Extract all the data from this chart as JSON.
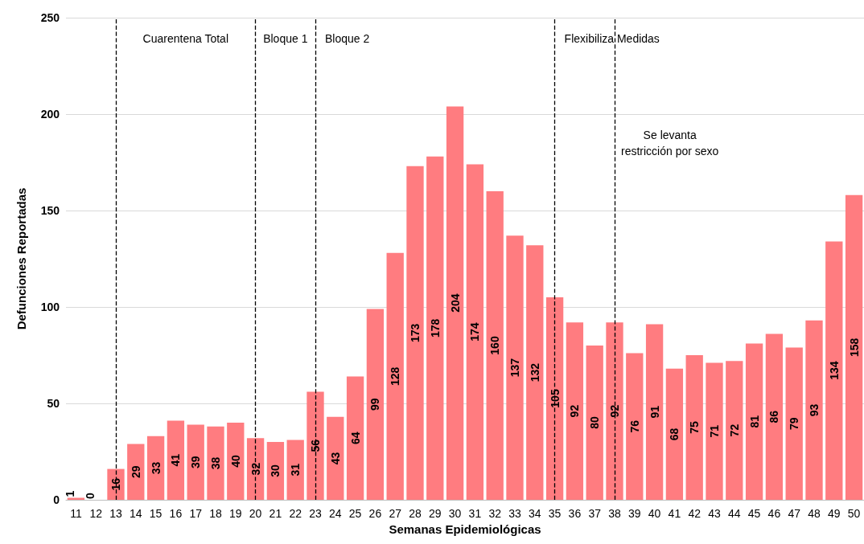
{
  "chart_data": {
    "type": "bar",
    "xlabel": "Semanas Epidemiológicas",
    "ylabel": "Defunciones Reportadas",
    "categories": [
      "11",
      "12",
      "13",
      "14",
      "15",
      "16",
      "17",
      "18",
      "19",
      "20",
      "21",
      "22",
      "23",
      "24",
      "25",
      "26",
      "27",
      "28",
      "29",
      "30",
      "31",
      "32",
      "33",
      "34",
      "35",
      "36",
      "37",
      "38",
      "39",
      "40",
      "41",
      "42",
      "43",
      "44",
      "45",
      "46",
      "47",
      "48",
      "49",
      "50"
    ],
    "values": [
      1,
      0,
      16,
      29,
      33,
      41,
      39,
      38,
      40,
      32,
      30,
      31,
      56,
      43,
      64,
      99,
      128,
      173,
      178,
      204,
      174,
      160,
      137,
      132,
      105,
      92,
      80,
      92,
      76,
      91,
      68,
      75,
      71,
      72,
      81,
      86,
      79,
      93,
      134,
      158
    ],
    "color": "#ff7c80",
    "ylim": [
      0,
      250
    ],
    "yticks": [
      0,
      50,
      100,
      150,
      200,
      250
    ],
    "grid": "y",
    "data_labels": true,
    "ref_lines": [
      {
        "axis": "x",
        "value": "13",
        "label": "Cuarentena Total",
        "line_style": "dashed",
        "color": "#000000"
      },
      {
        "axis": "x",
        "value": "20",
        "label": "Bloque 1",
        "line_style": "dashed",
        "color": "#000000"
      },
      {
        "axis": "x",
        "value": "23",
        "label": "Bloque 2",
        "line_style": "dashed",
        "color": "#000000"
      },
      {
        "axis": "x",
        "value": "35",
        "label": "Flexibiliza Medidas",
        "line_style": "dashed",
        "color": "#000000"
      },
      {
        "axis": "x",
        "value": "38",
        "label": "Se levanta\nrestricción por sexo",
        "line_style": "dashed",
        "color": "#000000"
      }
    ]
  }
}
